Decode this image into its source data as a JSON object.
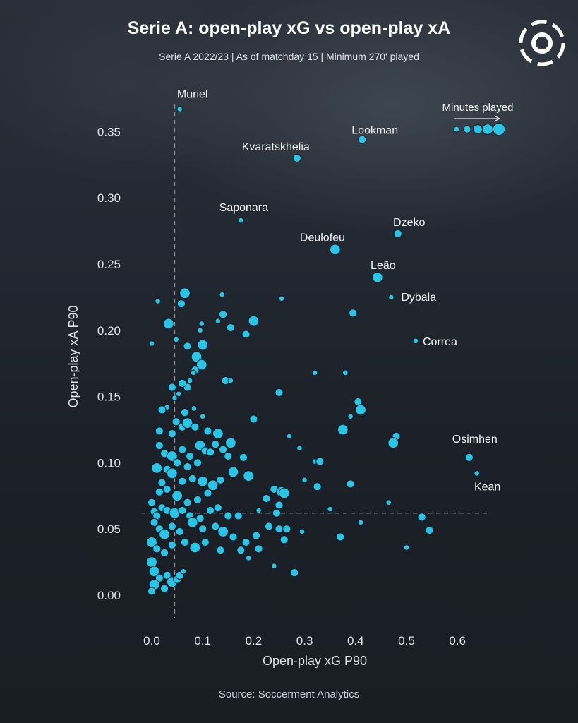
{
  "header": {
    "title": "Serie A: open-play xG vs open-play xA",
    "subtitle": "Serie A 2022/23  | As of matchday 15 | Minimum 270' played"
  },
  "footer": {
    "source": "Source: Soccerment Analytics"
  },
  "logo": {
    "icon": "soccerment-logo-icon"
  },
  "colors": {
    "point_fill": "#29c4e6",
    "point_stroke": "#0d1a22",
    "reference_line": "#8a9099",
    "text": "#e8eaee"
  },
  "chart_data": {
    "type": "scatter",
    "title": "Serie A: open-play xG vs open-play xA",
    "xlabel": "Open-play xG P90",
    "ylabel": "Open-play xA P90",
    "xlim": [
      -0.03,
      0.68
    ],
    "ylim": [
      -0.02,
      0.38
    ],
    "xticks": [
      0.0,
      0.1,
      0.2,
      0.3,
      0.4,
      0.5,
      0.6
    ],
    "yticks": [
      0.0,
      0.05,
      0.1,
      0.15,
      0.2,
      0.25,
      0.3,
      0.35
    ],
    "xtick_labels": [
      "0.0",
      "0.1",
      "0.2",
      "0.3",
      "0.4",
      "0.5",
      "0.6"
    ],
    "ytick_labels": [
      "0.00",
      "0.05",
      "0.10",
      "0.15",
      "0.20",
      "0.25",
      "0.30",
      "0.35"
    ],
    "grid": false,
    "reference_lines": {
      "x": 0.045,
      "y": 0.062
    },
    "size_legend": {
      "title": "Minutes played",
      "position": "top-right"
    },
    "labeled_points": [
      {
        "name": "Muriel",
        "x": 0.055,
        "y": 0.367,
        "size": 1
      },
      {
        "name": "Lookman",
        "x": 0.413,
        "y": 0.344,
        "size": 2
      },
      {
        "name": "Kvaratskhelia",
        "x": 0.285,
        "y": 0.33,
        "size": 2
      },
      {
        "name": "Saponara",
        "x": 0.175,
        "y": 0.283,
        "size": 1
      },
      {
        "name": "Dzeko",
        "x": 0.483,
        "y": 0.273,
        "size": 2
      },
      {
        "name": "Deulofeu",
        "x": 0.36,
        "y": 0.261,
        "size": 3
      },
      {
        "name": "Leão",
        "x": 0.443,
        "y": 0.24,
        "size": 3
      },
      {
        "name": "Dybala",
        "x": 0.47,
        "y": 0.225,
        "size": 1
      },
      {
        "name": "Correa",
        "x": 0.518,
        "y": 0.192,
        "size": 1
      },
      {
        "name": "Osimhen",
        "x": 0.623,
        "y": 0.104,
        "size": 2
      },
      {
        "name": "Kean",
        "x": 0.638,
        "y": 0.092,
        "size": 1
      }
    ],
    "points": [
      [
        0.0,
        0.19,
        1
      ],
      [
        0.012,
        0.222,
        1
      ],
      [
        0.033,
        0.205,
        3
      ],
      [
        0.058,
        0.22,
        2
      ],
      [
        0.065,
        0.228,
        3
      ],
      [
        0.048,
        0.193,
        1
      ],
      [
        0.098,
        0.205,
        1
      ],
      [
        0.095,
        0.2,
        1
      ],
      [
        0.138,
        0.227,
        1
      ],
      [
        0.14,
        0.212,
        2
      ],
      [
        0.13,
        0.207,
        1
      ],
      [
        0.155,
        0.202,
        2
      ],
      [
        0.2,
        0.207,
        3
      ],
      [
        0.185,
        0.197,
        2
      ],
      [
        0.255,
        0.224,
        1
      ],
      [
        0.395,
        0.213,
        2
      ],
      [
        0.07,
        0.188,
        2
      ],
      [
        0.088,
        0.18,
        3
      ],
      [
        0.1,
        0.189,
        3
      ],
      [
        0.098,
        0.174,
        3
      ],
      [
        0.085,
        0.17,
        2
      ],
      [
        0.082,
        0.168,
        1
      ],
      [
        0.075,
        0.162,
        1
      ],
      [
        0.07,
        0.157,
        2
      ],
      [
        0.06,
        0.16,
        2
      ],
      [
        0.053,
        0.152,
        1
      ],
      [
        0.04,
        0.157,
        2
      ],
      [
        0.045,
        0.149,
        1
      ],
      [
        0.03,
        0.142,
        1
      ],
      [
        0.145,
        0.162,
        2
      ],
      [
        0.155,
        0.162,
        1
      ],
      [
        0.25,
        0.153,
        2
      ],
      [
        0.32,
        0.168,
        1
      ],
      [
        0.38,
        0.168,
        1
      ],
      [
        0.02,
        0.14,
        2
      ],
      [
        0.048,
        0.131,
        2
      ],
      [
        0.065,
        0.138,
        2
      ],
      [
        0.083,
        0.141,
        1
      ],
      [
        0.1,
        0.135,
        1
      ],
      [
        0.2,
        0.133,
        2
      ],
      [
        0.27,
        0.12,
        1
      ],
      [
        0.29,
        0.111,
        1
      ],
      [
        0.405,
        0.146,
        2
      ],
      [
        0.41,
        0.14,
        3
      ],
      [
        0.39,
        0.135,
        1
      ],
      [
        0.375,
        0.125,
        3
      ],
      [
        0.48,
        0.12,
        2
      ],
      [
        0.474,
        0.115,
        3
      ],
      [
        0.015,
        0.124,
        2
      ],
      [
        0.04,
        0.122,
        2
      ],
      [
        0.06,
        0.127,
        2
      ],
      [
        0.07,
        0.13,
        3
      ],
      [
        0.085,
        0.127,
        2
      ],
      [
        0.11,
        0.124,
        2
      ],
      [
        0.13,
        0.122,
        3
      ],
      [
        0.125,
        0.114,
        2
      ],
      [
        0.155,
        0.115,
        3
      ],
      [
        0.14,
        0.11,
        2
      ],
      [
        0.15,
        0.105,
        2
      ],
      [
        0.18,
        0.104,
        2
      ],
      [
        0.16,
        0.093,
        3
      ],
      [
        0.19,
        0.09,
        3
      ],
      [
        0.015,
        0.113,
        2
      ],
      [
        0.025,
        0.107,
        2
      ],
      [
        0.04,
        0.105,
        3
      ],
      [
        0.06,
        0.11,
        2
      ],
      [
        0.075,
        0.105,
        2
      ],
      [
        0.095,
        0.113,
        3
      ],
      [
        0.105,
        0.109,
        2
      ],
      [
        0.115,
        0.108,
        2
      ],
      [
        0.09,
        0.1,
        2
      ],
      [
        0.07,
        0.097,
        2
      ],
      [
        0.05,
        0.1,
        2
      ],
      [
        0.03,
        0.095,
        2
      ],
      [
        0.01,
        0.096,
        3
      ],
      [
        0.02,
        0.085,
        2
      ],
      [
        0.32,
        0.101,
        1
      ],
      [
        0.33,
        0.101,
        2
      ],
      [
        0.325,
        0.082,
        2
      ],
      [
        0.39,
        0.084,
        2
      ],
      [
        0.3,
        0.087,
        1
      ],
      [
        0.35,
        0.065,
        1
      ],
      [
        0.465,
        0.07,
        1
      ],
      [
        0.04,
        0.092,
        3
      ],
      [
        0.06,
        0.086,
        2
      ],
      [
        0.08,
        0.088,
        2
      ],
      [
        0.1,
        0.086,
        3
      ],
      [
        0.12,
        0.083,
        3
      ],
      [
        0.135,
        0.087,
        2
      ],
      [
        0.11,
        0.077,
        2
      ],
      [
        0.09,
        0.072,
        2
      ],
      [
        0.07,
        0.07,
        2
      ],
      [
        0.05,
        0.075,
        3
      ],
      [
        0.03,
        0.08,
        2
      ],
      [
        0.015,
        0.078,
        2
      ],
      [
        0.24,
        0.08,
        2
      ],
      [
        0.255,
        0.078,
        3
      ],
      [
        0.26,
        0.077,
        3
      ],
      [
        0.225,
        0.073,
        2
      ],
      [
        0.25,
        0.068,
        2
      ],
      [
        0.245,
        0.062,
        2
      ],
      [
        0.21,
        0.064,
        1
      ],
      [
        0.0,
        0.07,
        2
      ],
      [
        0.005,
        0.063,
        2
      ],
      [
        0.01,
        0.06,
        2
      ],
      [
        0.02,
        0.066,
        2
      ],
      [
        0.03,
        0.064,
        2
      ],
      [
        0.045,
        0.062,
        3
      ],
      [
        0.06,
        0.064,
        2
      ],
      [
        0.075,
        0.06,
        2
      ],
      [
        0.095,
        0.058,
        2
      ],
      [
        0.115,
        0.064,
        2
      ],
      [
        0.13,
        0.066,
        2
      ],
      [
        0.15,
        0.06,
        2
      ],
      [
        0.17,
        0.06,
        2
      ],
      [
        0.005,
        0.055,
        2
      ],
      [
        0.015,
        0.05,
        2
      ],
      [
        0.025,
        0.046,
        3
      ],
      [
        0.04,
        0.052,
        2
      ],
      [
        0.055,
        0.048,
        2
      ],
      [
        0.08,
        0.055,
        3
      ],
      [
        0.1,
        0.05,
        2
      ],
      [
        0.125,
        0.052,
        2
      ],
      [
        0.14,
        0.048,
        3
      ],
      [
        0.16,
        0.044,
        2
      ],
      [
        0.185,
        0.04,
        2
      ],
      [
        0.205,
        0.045,
        2
      ],
      [
        0.23,
        0.052,
        2
      ],
      [
        0.25,
        0.05,
        2
      ],
      [
        0.265,
        0.05,
        2
      ],
      [
        0.26,
        0.042,
        2
      ],
      [
        0.295,
        0.048,
        1
      ],
      [
        0.37,
        0.044,
        2
      ],
      [
        0.41,
        0.055,
        1
      ],
      [
        0.53,
        0.059,
        2
      ],
      [
        0.545,
        0.049,
        2
      ],
      [
        0.5,
        0.036,
        1
      ],
      [
        0.0,
        0.04,
        3
      ],
      [
        0.01,
        0.035,
        2
      ],
      [
        0.025,
        0.032,
        2
      ],
      [
        0.04,
        0.038,
        2
      ],
      [
        0.065,
        0.04,
        2
      ],
      [
        0.085,
        0.036,
        3
      ],
      [
        0.105,
        0.04,
        2
      ],
      [
        0.135,
        0.034,
        2
      ],
      [
        0.175,
        0.034,
        2
      ],
      [
        0.19,
        0.028,
        1
      ],
      [
        0.21,
        0.035,
        2
      ],
      [
        0.24,
        0.022,
        1
      ],
      [
        0.28,
        0.017,
        2
      ],
      [
        0.0,
        0.025,
        3
      ],
      [
        0.005,
        0.018,
        3
      ],
      [
        0.015,
        0.013,
        2
      ],
      [
        0.03,
        0.015,
        2
      ],
      [
        0.005,
        0.008,
        3
      ],
      [
        0.0,
        0.003,
        2
      ],
      [
        0.025,
        0.005,
        2
      ],
      [
        0.04,
        0.01,
        3
      ],
      [
        0.05,
        0.012,
        2
      ],
      [
        0.055,
        0.015,
        2
      ],
      [
        0.062,
        0.018,
        1
      ]
    ]
  }
}
